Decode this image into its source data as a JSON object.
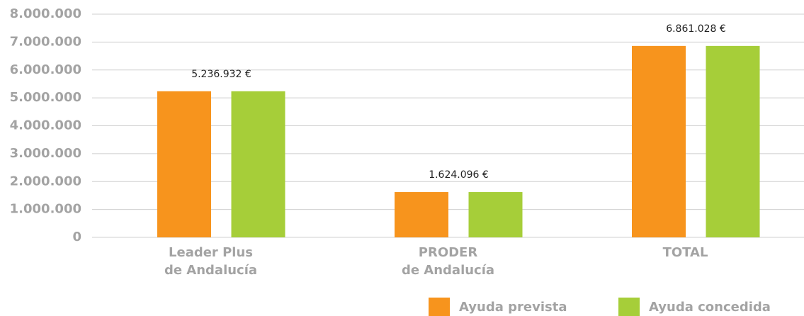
{
  "chart_data": {
    "type": "bar",
    "categories": [
      [
        "Leader Plus",
        "de Andalucía"
      ],
      [
        "PRODER",
        "de Andalucía"
      ],
      [
        "TOTAL"
      ]
    ],
    "series": [
      {
        "name": "Ayuda prevista",
        "color": "#f7941d",
        "values": [
          5236932,
          1624096,
          6861028
        ],
        "value_labels": [
          "5.236.932 €",
          "1.624.096 €",
          "6.861.028 €"
        ]
      },
      {
        "name": "Ayuda concedida",
        "color": "#a6ce39",
        "values": [
          5236932,
          1624096,
          6861028
        ]
      }
    ],
    "ylim": [
      0,
      8000000
    ],
    "yticks": [
      0,
      {
        "value": 1000000,
        "label": "1.000.000"
      },
      {
        "value": 2000000,
        "label": "2.000.000"
      },
      {
        "value": 3000000,
        "label": "3.000.000"
      },
      {
        "value": 4000000,
        "label": "4.000.000"
      },
      {
        "value": 5000000,
        "label": "5.000.000"
      },
      {
        "value": 6000000,
        "label": "6.000.000"
      },
      {
        "value": 7000000,
        "label": "7.000.000"
      },
      {
        "value": 8000000,
        "label": "8.000.000"
      }
    ],
    "grid": true,
    "legend": "bottom-right"
  }
}
